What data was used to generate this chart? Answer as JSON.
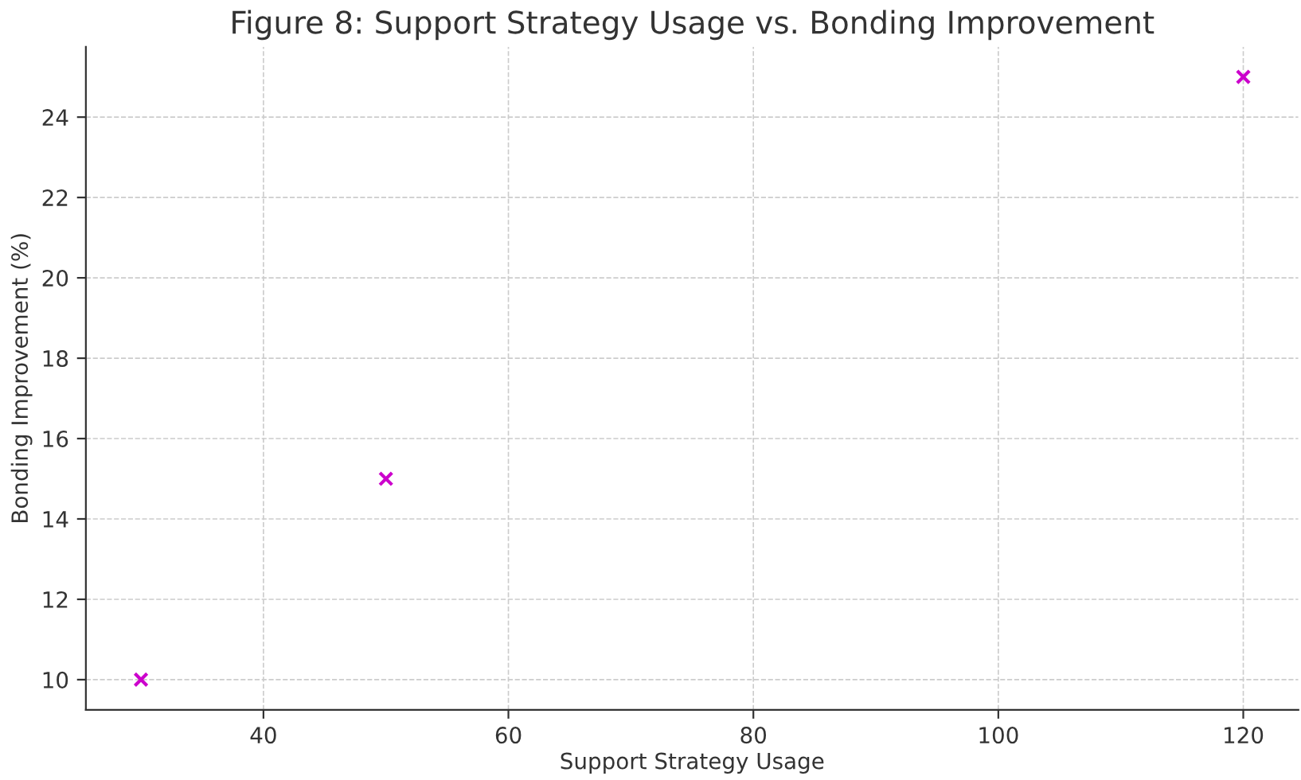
{
  "chart_data": {
    "type": "scatter",
    "title": "Figure 8: Support Strategy Usage vs. Bonding Improvement",
    "xlabel": "Support Strategy Usage",
    "ylabel": "Bonding Improvement (%)",
    "x": [
      30,
      50,
      120
    ],
    "series": [
      {
        "color": "#cc00cc",
        "values": [
          10,
          15,
          25
        ]
      }
    ],
    "xlim": [
      25.5,
      124.5
    ],
    "ylim": [
      9.25,
      25.75
    ],
    "xticks": [
      40,
      60,
      80,
      100,
      120
    ],
    "yticks": [
      10,
      12,
      14,
      16,
      18,
      20,
      22,
      24
    ],
    "grid": true,
    "marker": "cross"
  }
}
